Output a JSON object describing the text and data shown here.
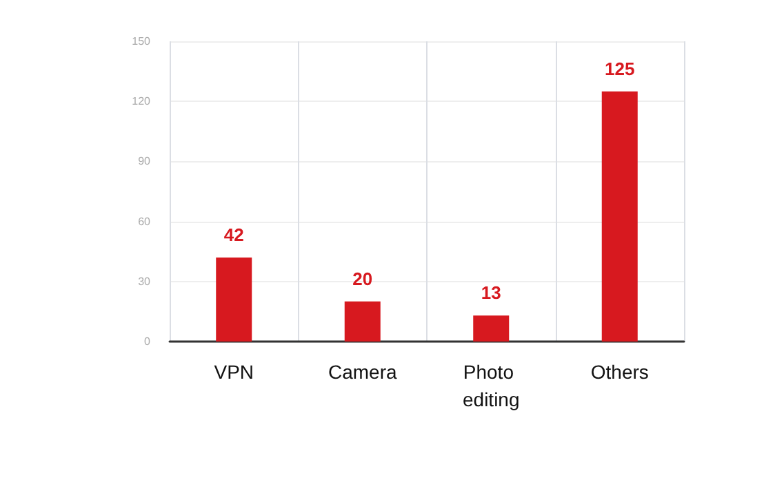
{
  "chart_data": {
    "type": "bar",
    "categories": [
      "VPN",
      "Camera",
      "Photo editing",
      "Others"
    ],
    "values": [
      42,
      20,
      13,
      125
    ],
    "color": "#d7191f",
    "ylim": [
      0,
      150
    ],
    "yticks": [
      0,
      30,
      60,
      90,
      120,
      150
    ],
    "grid": true,
    "data_labels": true
  }
}
